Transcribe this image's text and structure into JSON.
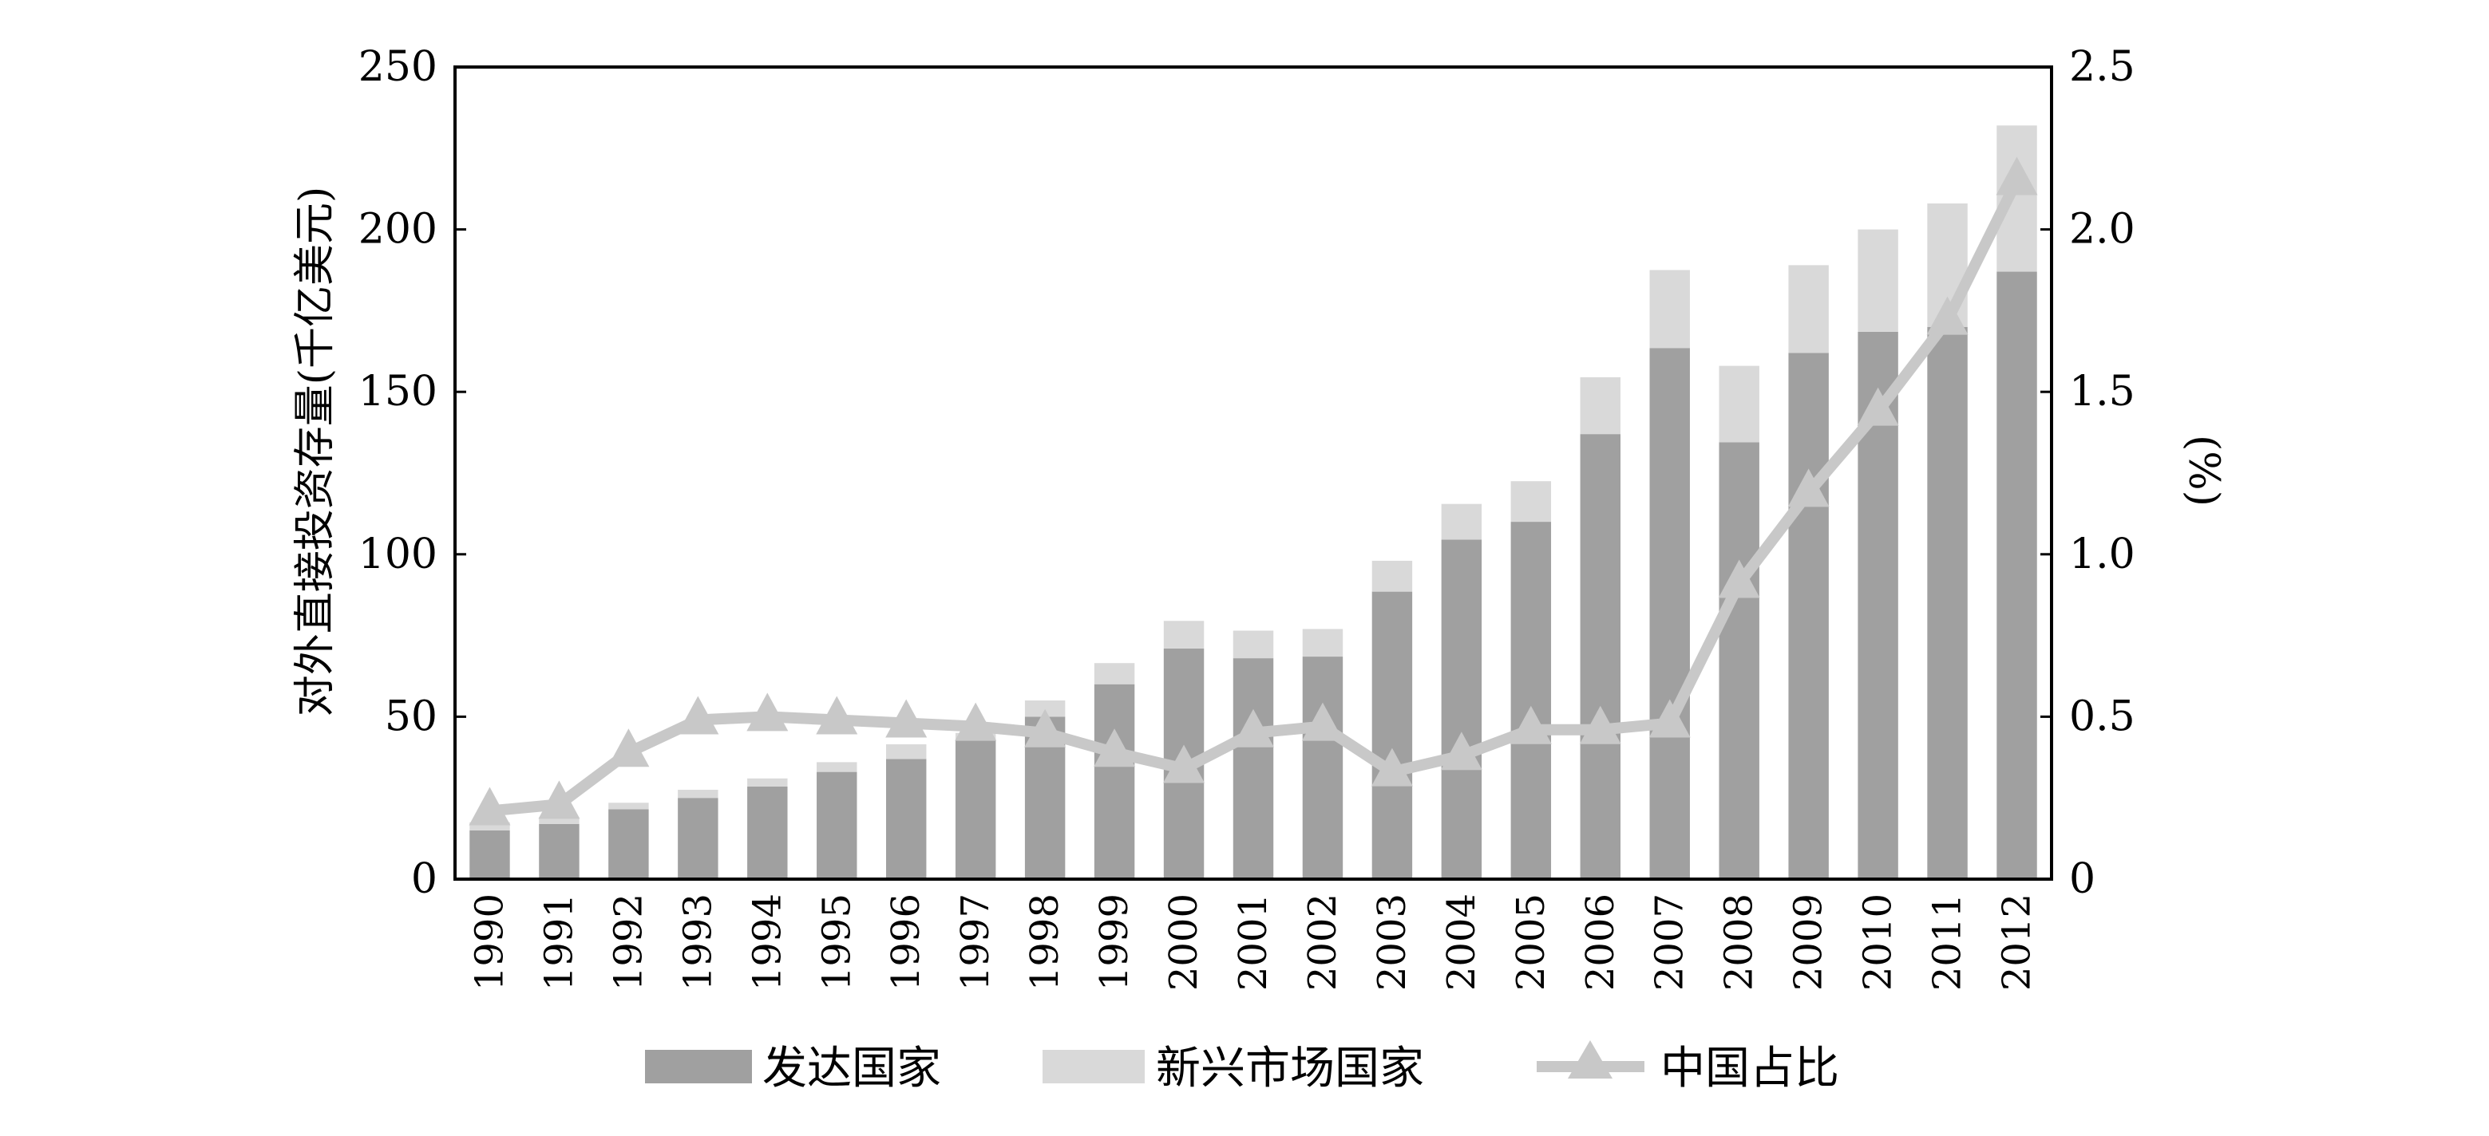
{
  "chart_data": {
    "type": "bar",
    "stacked": true,
    "categories": [
      "1990",
      "1991",
      "1992",
      "1993",
      "1994",
      "1995",
      "1996",
      "1997",
      "1998",
      "1999",
      "2000",
      "2001",
      "2002",
      "2003",
      "2004",
      "2005",
      "2006",
      "2007",
      "2008",
      "2009",
      "2010",
      "2011",
      "2012"
    ],
    "series": [
      {
        "name": "发达国家",
        "type": "bar",
        "axis": "left",
        "color": "#a0a0a0",
        "values": [
          15,
          17,
          21.5,
          25,
          28.5,
          33,
          37,
          43,
          50,
          60,
          71,
          68,
          68.5,
          88.5,
          104.5,
          110,
          137,
          163.5,
          134.5,
          162,
          168.5,
          170,
          187
        ]
      },
      {
        "name": "新兴市场国家",
        "type": "bar",
        "axis": "left",
        "color": "#d9d9d9",
        "values": [
          2.5,
          2,
          2,
          2.5,
          2.5,
          3,
          4.5,
          2,
          5,
          6.5,
          8.5,
          8.5,
          8.5,
          9.5,
          11,
          12.5,
          17.5,
          24,
          23.5,
          27,
          31.5,
          38,
          45
        ]
      },
      {
        "name": "中国占比",
        "type": "line",
        "axis": "right",
        "color": "#c8c8c8",
        "marker": "triangle",
        "values": [
          0.21,
          0.23,
          0.39,
          0.49,
          0.5,
          0.49,
          0.48,
          0.47,
          0.45,
          0.39,
          0.34,
          0.45,
          0.47,
          0.33,
          0.38,
          0.46,
          0.46,
          0.48,
          0.91,
          1.19,
          1.44,
          1.72,
          2.15
        ]
      }
    ],
    "ylabel_left": "对外直接投资存量(千亿美元)",
    "ylabel_right": "(%)",
    "ylim_left": [
      0,
      250
    ],
    "ylim_right": [
      0,
      2.5
    ],
    "yticks_left": [
      "0",
      "50",
      "100",
      "150",
      "200",
      "250"
    ],
    "yticks_right": [
      "0",
      "0.5",
      "1.0",
      "1.5",
      "2.0",
      "2.5"
    ],
    "grid": false,
    "legend_position": "bottom"
  }
}
